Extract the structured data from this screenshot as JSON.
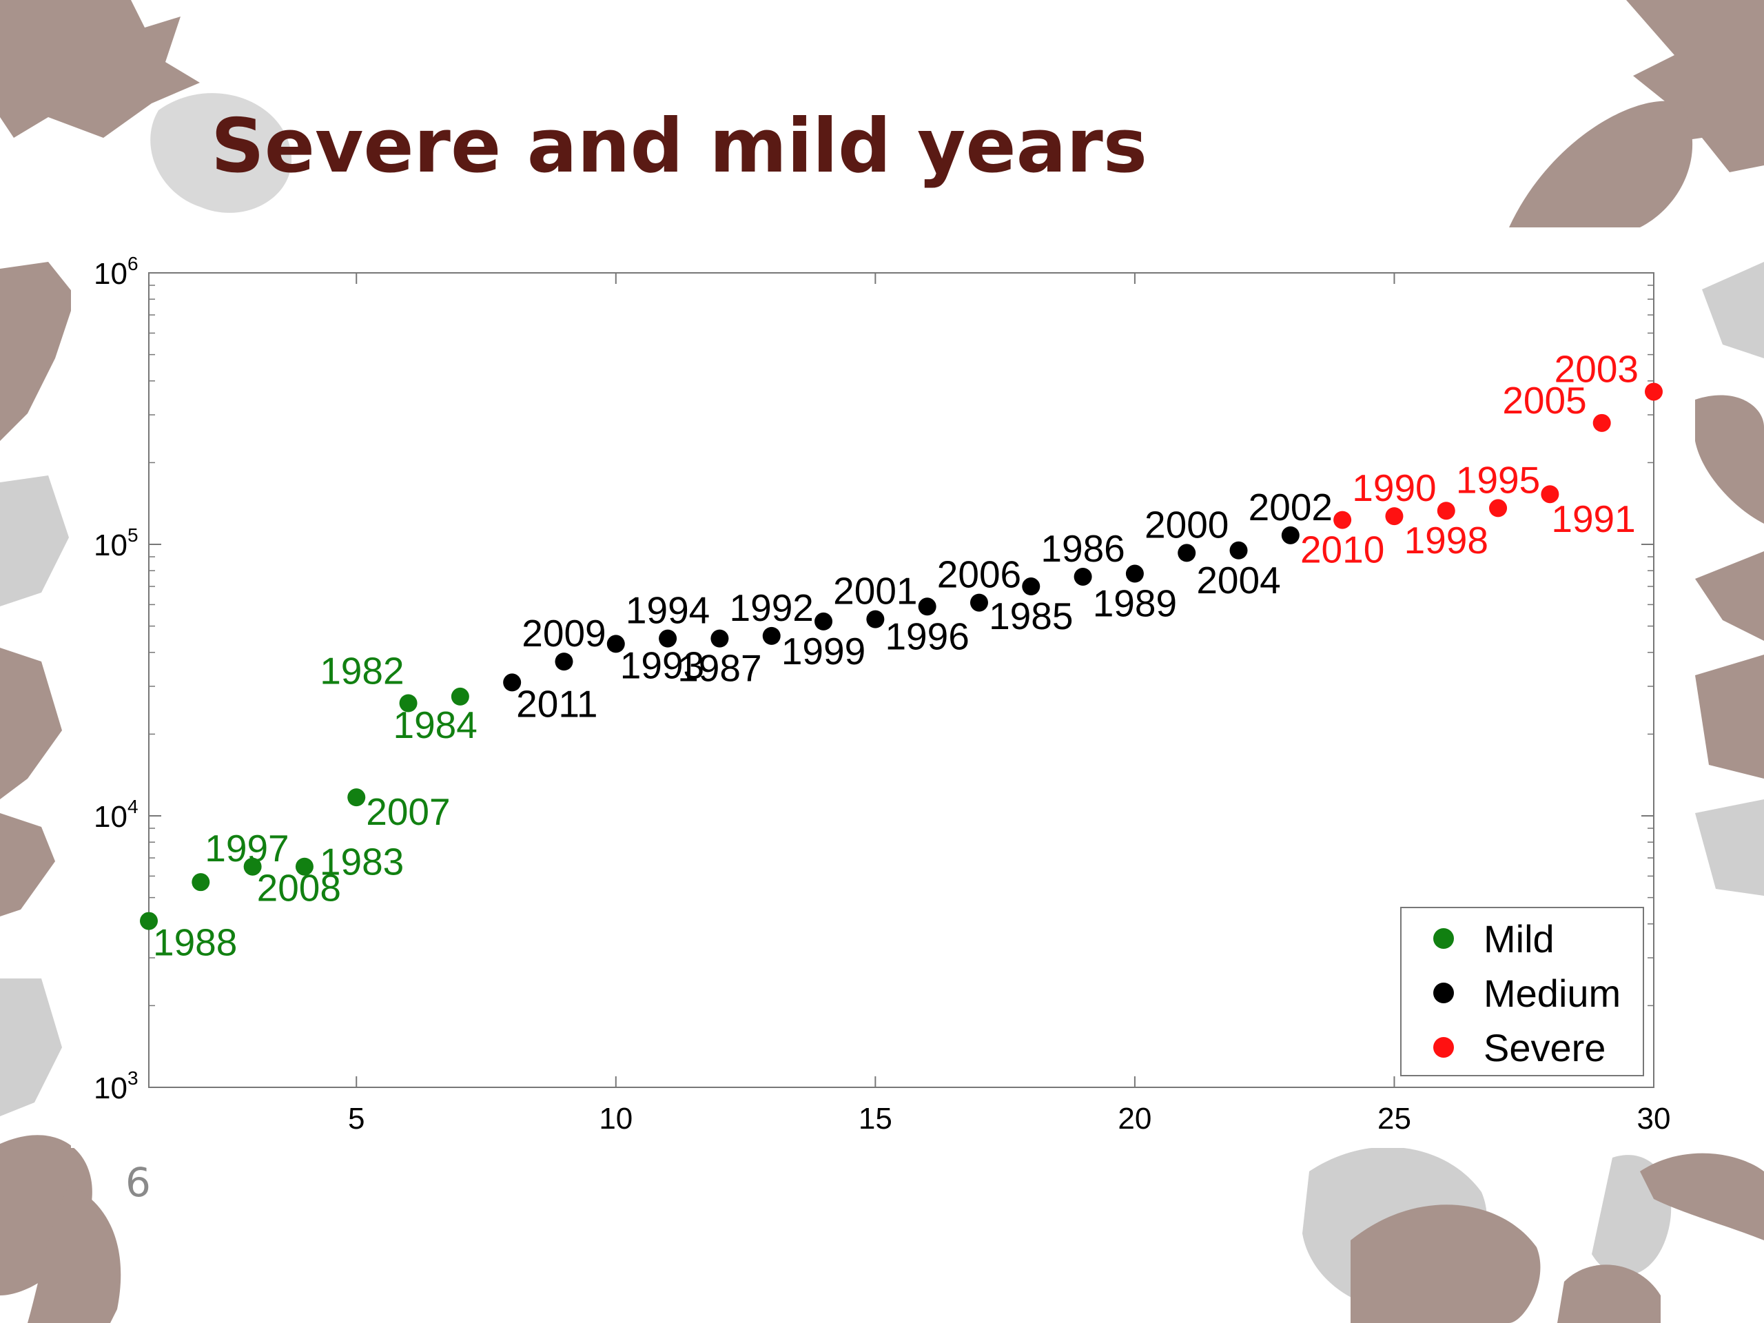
{
  "slide": {
    "title": "Severe and mild years",
    "page_number": "6"
  },
  "colors": {
    "title": "#5a1a14",
    "mild": "#118011",
    "medium": "#000000",
    "severe": "#ff1111",
    "leaf_dark": "#a8938c",
    "leaf_light": "#cfcfcf"
  },
  "chart_data": {
    "type": "scatter",
    "xlim": [
      1,
      30
    ],
    "ylim": [
      1000,
      1000000
    ],
    "y_scale": "log",
    "grid": false,
    "legend_position": "bottom-right",
    "x_ticks": [
      "5",
      "10",
      "15",
      "20",
      "25",
      "30"
    ],
    "y_ticks": [
      {
        "base": "10",
        "exp": "3"
      },
      {
        "base": "10",
        "exp": "4"
      },
      {
        "base": "10",
        "exp": "5"
      },
      {
        "base": "10",
        "exp": "6"
      }
    ],
    "series": [
      {
        "name": "Mild",
        "color": "#118011",
        "points": [
          {
            "x": 1,
            "y": 4100,
            "label": "1988",
            "anchor": "start"
          },
          {
            "x": 2,
            "y": 5700,
            "label": "1997",
            "anchor": "start"
          },
          {
            "x": 3,
            "y": 6500,
            "label": "2008",
            "anchor": "start"
          },
          {
            "x": 4,
            "y": 6500,
            "label": "1983",
            "anchor": "start"
          },
          {
            "x": 5,
            "y": 11700,
            "label": "2007",
            "anchor": "start"
          },
          {
            "x": 6,
            "y": 26000,
            "label": "1982",
            "anchor": "end"
          },
          {
            "x": 7,
            "y": 27500,
            "label": "1984",
            "anchor": "end"
          }
        ]
      },
      {
        "name": "Medium",
        "color": "#000000",
        "points": [
          {
            "x": 8,
            "y": 31000,
            "label": "2011",
            "anchor": "start"
          },
          {
            "x": 9,
            "y": 37000,
            "label": "2009",
            "anchor": "middle"
          },
          {
            "x": 10,
            "y": 43000,
            "label": "1993",
            "anchor": "start"
          },
          {
            "x": 11,
            "y": 45000,
            "label": "1994",
            "anchor": "middle"
          },
          {
            "x": 12,
            "y": 45000,
            "label": "1987",
            "anchor": "middle"
          },
          {
            "x": 13,
            "y": 46000,
            "label": "1992",
            "anchor": "middle"
          },
          {
            "x": 14,
            "y": 52000,
            "label": "1999",
            "anchor": "middle"
          },
          {
            "x": 15,
            "y": 53000,
            "label": "2001",
            "anchor": "middle"
          },
          {
            "x": 16,
            "y": 59000,
            "label": "1996",
            "anchor": "middle"
          },
          {
            "x": 17,
            "y": 61000,
            "label": "2006",
            "anchor": "middle"
          },
          {
            "x": 18,
            "y": 70000,
            "label": "1985",
            "anchor": "middle"
          },
          {
            "x": 19,
            "y": 76000,
            "label": "1986",
            "anchor": "middle"
          },
          {
            "x": 20,
            "y": 78000,
            "label": "1989",
            "anchor": "middle"
          },
          {
            "x": 21,
            "y": 93000,
            "label": "2000",
            "anchor": "middle"
          },
          {
            "x": 22,
            "y": 95000,
            "label": "2004",
            "anchor": "middle"
          },
          {
            "x": 23,
            "y": 108000,
            "label": "2002",
            "anchor": "middle"
          }
        ]
      },
      {
        "name": "Severe",
        "color": "#ff1111",
        "points": [
          {
            "x": 24,
            "y": 123000,
            "label": "2010",
            "anchor": "middle"
          },
          {
            "x": 25,
            "y": 127000,
            "label": "1990",
            "anchor": "middle"
          },
          {
            "x": 26,
            "y": 133000,
            "label": "1998",
            "anchor": "middle"
          },
          {
            "x": 27,
            "y": 136000,
            "label": "1995",
            "anchor": "middle"
          },
          {
            "x": 28,
            "y": 153000,
            "label": "1991",
            "anchor": "start"
          },
          {
            "x": 29,
            "y": 280000,
            "label": "2005",
            "anchor": "end"
          },
          {
            "x": 30,
            "y": 365000,
            "label": "2003",
            "anchor": "end"
          }
        ]
      }
    ]
  }
}
